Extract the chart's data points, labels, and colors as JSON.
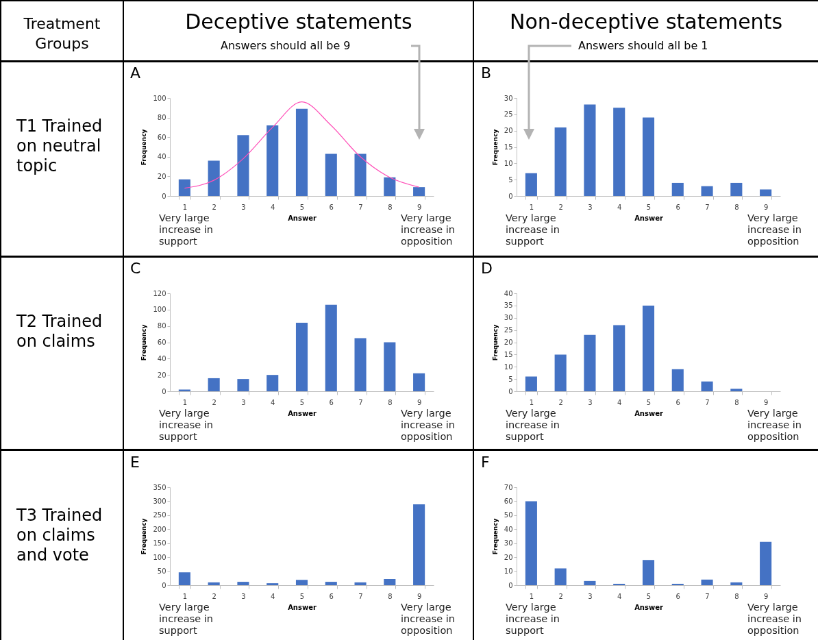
{
  "chart_data": [
    {
      "type": "bar",
      "title": "A",
      "xlabel": "Answer",
      "ylabel": "Frequency",
      "categories": [
        "1",
        "2",
        "3",
        "4",
        "5",
        "6",
        "7",
        "8",
        "9"
      ],
      "ylim": [
        0,
        100
      ],
      "yticks": [
        0,
        20,
        40,
        60,
        80,
        100
      ],
      "series": [
        {
          "color": "#4472c4",
          "values": [
            17,
            36,
            62,
            72,
            89,
            43,
            43,
            19,
            9
          ]
        },
        {
          "type": "line",
          "color": "#ff4fb8",
          "x": [
            "1",
            "2",
            "3",
            "4",
            "5",
            "6",
            "7",
            "8",
            "9"
          ],
          "values": [
            8,
            16,
            38,
            70,
            96,
            72,
            40,
            19,
            9
          ]
        }
      ],
      "annotations": [
        "Very large increase in support",
        "Very large increase in opposition",
        "T1 Trained on neutral topic",
        "Deceptive statements",
        "Answers should all be 9",
        "Treatment Groups"
      ]
    },
    {
      "type": "bar",
      "title": "B",
      "xlabel": "Answer",
      "ylabel": "Frequency",
      "categories": [
        "1",
        "2",
        "3",
        "4",
        "5",
        "6",
        "7",
        "8",
        "9"
      ],
      "ylim": [
        0,
        30
      ],
      "yticks": [
        0,
        5,
        10,
        15,
        20,
        25,
        30
      ],
      "color": "#4472c4",
      "values": [
        7,
        21,
        28,
        27,
        24,
        4,
        3,
        4,
        2
      ],
      "annotations": [
        "Very large increase in support",
        "Very large increase in opposition",
        "Non-deceptive statements",
        "Answers should all be 1"
      ]
    },
    {
      "type": "bar",
      "title": "C",
      "xlabel": "Answer",
      "ylabel": "Frequency",
      "categories": [
        "1",
        "2",
        "3",
        "4",
        "5",
        "6",
        "7",
        "8",
        "9"
      ],
      "ylim": [
        0,
        120
      ],
      "yticks": [
        0,
        20,
        40,
        60,
        80,
        100,
        120
      ],
      "color": "#4472c4",
      "values": [
        2,
        16,
        15,
        20,
        84,
        106,
        65,
        60,
        22
      ],
      "annotations": [
        "Very large increase in support",
        "Very large increase in opposition",
        "T2 Trained on claims"
      ]
    },
    {
      "type": "bar",
      "title": "D",
      "xlabel": "Answer",
      "ylabel": "Frequency",
      "categories": [
        "1",
        "2",
        "3",
        "4",
        "5",
        "6",
        "7",
        "8",
        "9"
      ],
      "ylim": [
        0,
        40
      ],
      "yticks": [
        0,
        5,
        10,
        15,
        20,
        25,
        30,
        35,
        40
      ],
      "color": "#4472c4",
      "values": [
        6,
        15,
        23,
        27,
        35,
        9,
        4,
        1,
        0
      ],
      "annotations": [
        "Very large increase in support",
        "Very large increase in opposition"
      ]
    },
    {
      "type": "bar",
      "title": "E",
      "xlabel": "Answer",
      "ylabel": "Frequency",
      "categories": [
        "1",
        "2",
        "3",
        "4",
        "5",
        "6",
        "7",
        "8",
        "9"
      ],
      "ylim": [
        0,
        350
      ],
      "yticks": [
        0,
        50,
        100,
        150,
        200,
        250,
        300,
        350
      ],
      "color": "#4472c4",
      "values": [
        46,
        10,
        12,
        7,
        19,
        12,
        10,
        22,
        289
      ],
      "annotations": [
        "Very large increase in support",
        "Very large increase in opposition",
        "T3 Trained on claims and vote"
      ]
    },
    {
      "type": "bar",
      "title": "F",
      "xlabel": "Answer",
      "ylabel": "Frequency",
      "categories": [
        "1",
        "2",
        "3",
        "4",
        "5",
        "6",
        "7",
        "8",
        "9"
      ],
      "ylim": [
        0,
        70
      ],
      "yticks": [
        0,
        10,
        20,
        30,
        40,
        50,
        60,
        70
      ],
      "color": "#4472c4",
      "values": [
        60,
        12,
        3,
        1,
        18,
        1,
        4,
        2,
        31
      ],
      "annotations": [
        "Very large increase in support",
        "Very large increase in opposition"
      ]
    }
  ]
}
